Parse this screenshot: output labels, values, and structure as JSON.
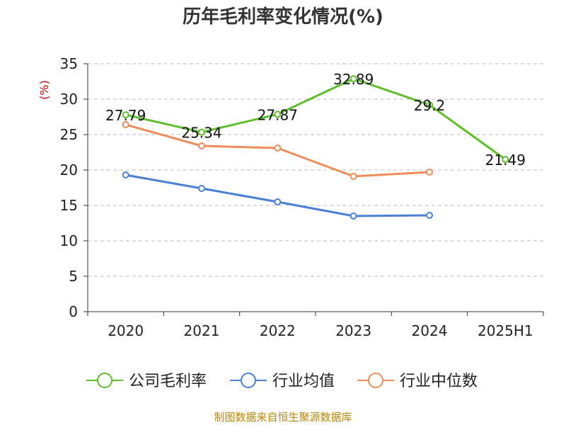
{
  "chart_data": {
    "type": "line",
    "title": "历年毛利率变化情况(%)",
    "ylabel": "(%)",
    "xlabel": "",
    "categories": [
      "2020",
      "2021",
      "2022",
      "2023",
      "2024",
      "2025H1"
    ],
    "ylim": [
      0,
      35
    ],
    "yticks": [
      0,
      5,
      10,
      15,
      20,
      25,
      30,
      35
    ],
    "grid": true,
    "legend_position": "bottom",
    "series": [
      {
        "name": "公司毛利率",
        "color": "#5cbf2a",
        "values": [
          27.79,
          25.34,
          27.87,
          32.89,
          29.2,
          21.49
        ],
        "labels": [
          "27.79",
          "25.34",
          "27.87",
          "32.89",
          "29.2",
          "21.49"
        ]
      },
      {
        "name": "行业均值",
        "color": "#4a7fd6",
        "values": [
          19.3,
          17.4,
          15.5,
          13.5,
          13.6,
          null
        ]
      },
      {
        "name": "行业中位数",
        "color": "#f08c5a",
        "values": [
          26.4,
          23.4,
          23.1,
          19.1,
          19.7,
          null
        ]
      }
    ]
  },
  "source": "制图数据来自恒生聚源数据库"
}
